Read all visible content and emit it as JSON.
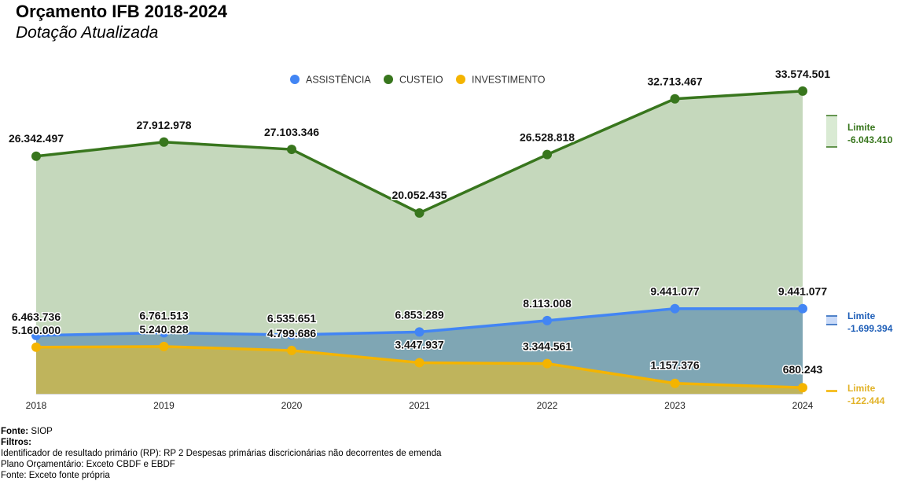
{
  "title": "Orçamento IFB 2018-2024",
  "subtitle": "Dotação Atualizada",
  "chart_data": {
    "type": "area",
    "x": [
      "2018",
      "2019",
      "2020",
      "2021",
      "2022",
      "2023",
      "2024"
    ],
    "ylim": [
      0,
      36000000
    ],
    "grid": false,
    "legend_position": "top-center",
    "series": [
      {
        "name": "ASSISTÊNCIA",
        "color": "#4285f4",
        "fill": "#7fa6b4",
        "label_color": "#1f5fb8",
        "values": [
          6463736,
          6761513,
          6535651,
          6853289,
          8113008,
          9441077,
          9441077
        ],
        "labels": [
          "6.463.736",
          "6.761.513",
          "6.535.651",
          "6.853.289",
          "8.113.008",
          "9.441.077",
          "9.441.077"
        ],
        "limit_label": "Limite",
        "limit_value": "-1.699.394"
      },
      {
        "name": "CUSTEIO",
        "color": "#38761d",
        "fill": "#c5d8bc",
        "label_color": "#38761d",
        "values": [
          26342497,
          27912978,
          27103346,
          20052435,
          26528818,
          32713467,
          33574501
        ],
        "labels": [
          "26.342.497",
          "27.912.978",
          "27.103.346",
          "20.052.435",
          "26.528.818",
          "32.713.467",
          "33.574.501"
        ],
        "limit_label": "Limite",
        "limit_value": "-6.043.410"
      },
      {
        "name": "INVESTIMENTO",
        "color": "#f4b400",
        "fill": "#bfb45c",
        "label_color": "#e2b329",
        "values": [
          5160000,
          5240828,
          4799686,
          3447937,
          3344561,
          1157376,
          680243
        ],
        "labels": [
          "5.160.000",
          "5.240.828",
          "4.799.686",
          "3.447.937",
          "3.344.561",
          "1.157.376",
          "680.243"
        ],
        "limit_label": "Limite",
        "limit_value": "-122.444"
      }
    ]
  },
  "footer": {
    "fonte_label": "Fonte:",
    "fonte_value": " SIOP",
    "filtros_label": "Filtros:",
    "lines": [
      "Identificador de resultado primário (RP): RP 2 Despesas primárias discricionárias não decorrentes de emenda",
      "Plano Orçamentário: Exceto CBDF e EBDF",
      "Fonte: Exceto fonte própria"
    ]
  }
}
